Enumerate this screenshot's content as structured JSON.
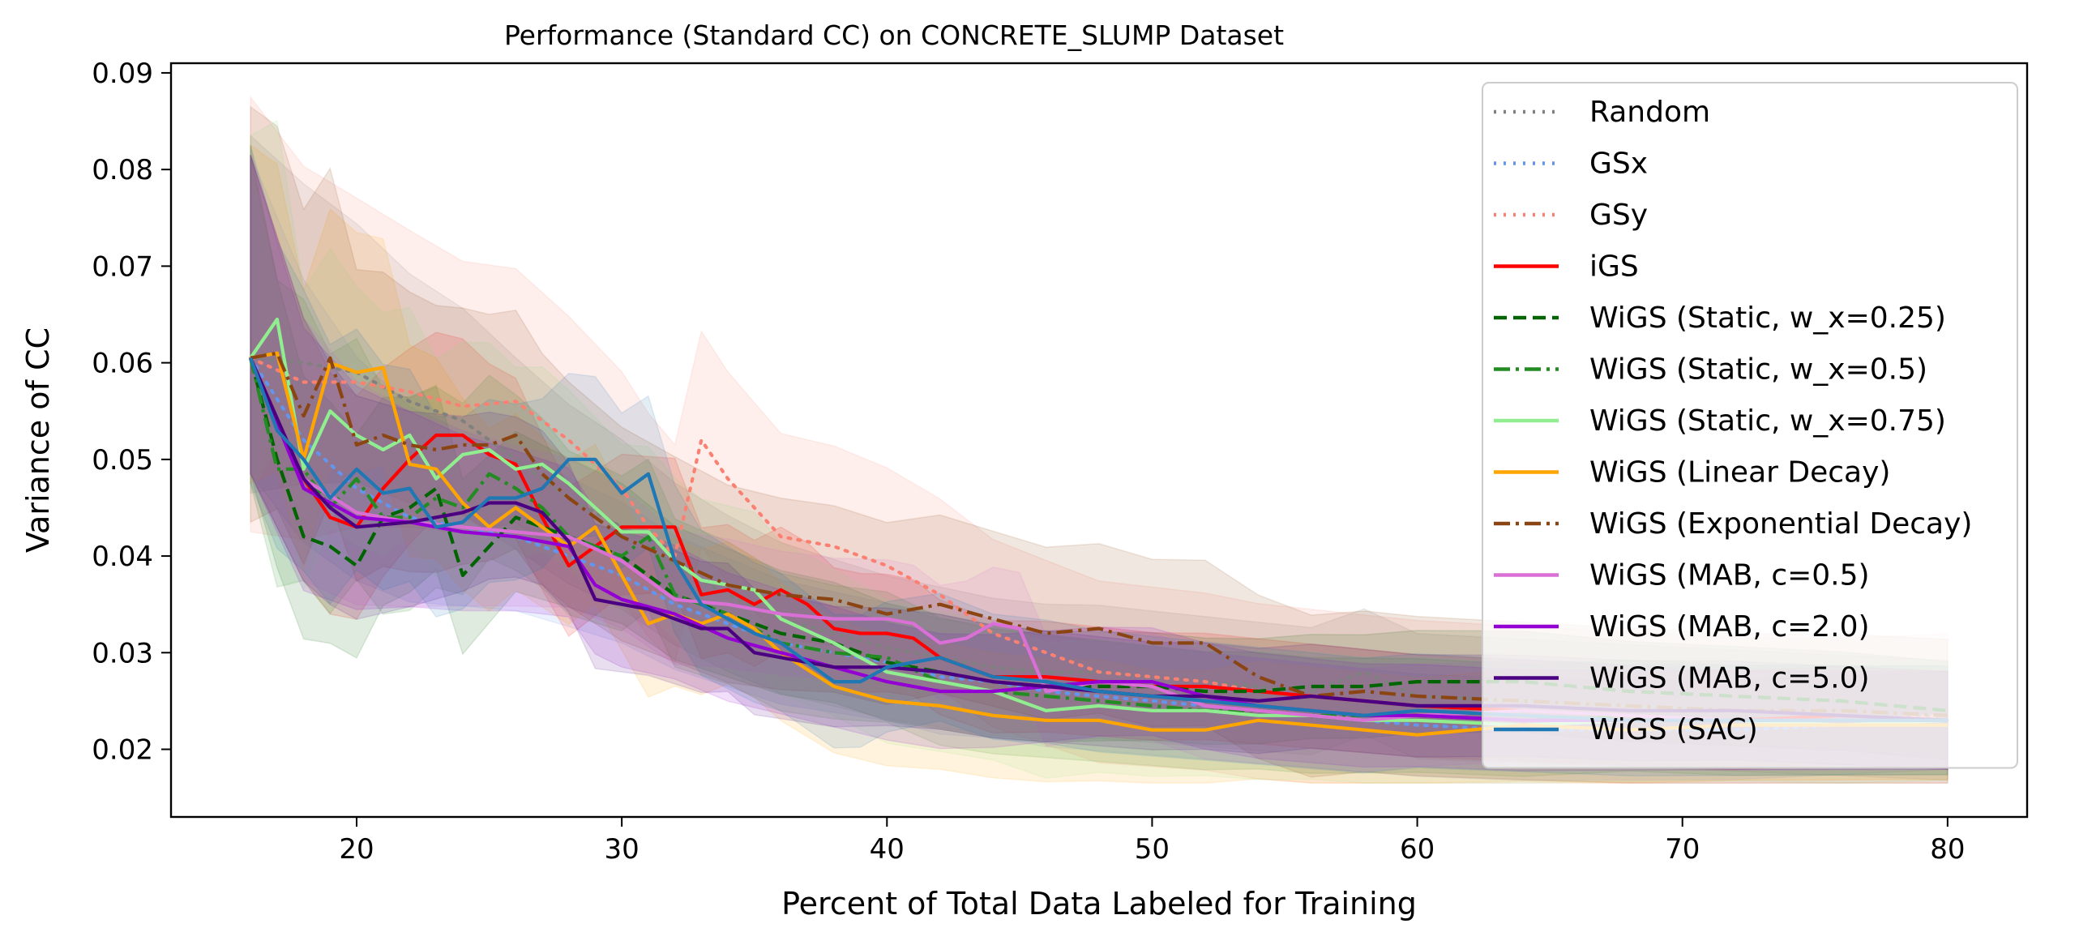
{
  "chart_data": {
    "type": "line",
    "title": "Performance (Standard CC) on CONCRETE_SLUMP Dataset",
    "xlabel": "Percent of Total Data Labeled for Training",
    "ylabel": "Variance of CC",
    "xlim": [
      13,
      83
    ],
    "ylim": [
      0.013,
      0.091
    ],
    "xticks": [
      20,
      30,
      40,
      50,
      60,
      70,
      80
    ],
    "xtick_labels": [
      "20",
      "30",
      "40",
      "50",
      "60",
      "70",
      "80"
    ],
    "yticks": [
      0.02,
      0.03,
      0.04,
      0.05,
      0.06,
      0.07,
      0.08,
      0.09
    ],
    "ytick_labels": [
      "0.02",
      "0.03",
      "0.04",
      "0.05",
      "0.06",
      "0.07",
      "0.08",
      "0.09"
    ],
    "grid": false,
    "legend_position": "upper right",
    "shaded_band": "mean ± std (translucent fill per series)",
    "series": [
      {
        "name": "Random",
        "color": "#808080",
        "dash": "dotted",
        "band_halfwidth": 0.011,
        "x": [
          16,
          18,
          20,
          22,
          24,
          26,
          28,
          30,
          32,
          34,
          36,
          38,
          40,
          42,
          44,
          46,
          48,
          50,
          52,
          54,
          56,
          58,
          60,
          64,
          68,
          72,
          76,
          80
        ],
        "y": [
          0.0605,
          0.06,
          0.059,
          0.056,
          0.054,
          0.05,
          0.046,
          0.043,
          0.039,
          0.036,
          0.0335,
          0.032,
          0.0305,
          0.0295,
          0.0285,
          0.028,
          0.028,
          0.0275,
          0.027,
          0.0265,
          0.026,
          0.028,
          0.0255,
          0.025,
          0.0245,
          0.024,
          0.0235,
          0.023
        ]
      },
      {
        "name": "GSx",
        "color": "#6495ED",
        "dash": "dotted",
        "band_halfwidth": 0.009,
        "x": [
          16,
          18,
          20,
          22,
          24,
          26,
          28,
          30,
          32,
          34,
          36,
          38,
          40,
          42,
          44,
          46,
          48,
          50,
          52,
          54,
          56,
          58,
          60,
          64,
          68,
          72,
          76,
          80
        ],
        "y": [
          0.0605,
          0.052,
          0.047,
          0.044,
          0.043,
          0.042,
          0.04,
          0.038,
          0.035,
          0.033,
          0.031,
          0.03,
          0.029,
          0.0275,
          0.027,
          0.026,
          0.0255,
          0.025,
          0.0245,
          0.024,
          0.0235,
          0.023,
          0.0225,
          0.022,
          0.022,
          0.022,
          0.0225,
          0.023
        ]
      },
      {
        "name": "GSy",
        "color": "#FA8072",
        "dash": "dotted",
        "band_halfwidth": 0.015,
        "x": [
          16,
          18,
          20,
          22,
          24,
          26,
          28,
          30,
          31,
          32,
          33,
          34,
          36,
          38,
          40,
          42,
          44,
          46,
          48,
          50,
          52,
          54,
          56,
          58,
          60,
          64,
          68,
          72,
          76,
          80
        ],
        "y": [
          0.0605,
          0.058,
          0.058,
          0.057,
          0.0555,
          0.056,
          0.052,
          0.047,
          0.043,
          0.04,
          0.052,
          0.048,
          0.042,
          0.041,
          0.039,
          0.036,
          0.032,
          0.03,
          0.028,
          0.0275,
          0.027,
          0.026,
          0.0255,
          0.025,
          0.0245,
          0.024,
          0.0235,
          0.023,
          0.023,
          0.0235
        ]
      },
      {
        "name": "iGS",
        "color": "#FF0000",
        "dash": "solid",
        "band_halfwidth": 0.009,
        "x": [
          16,
          18,
          19,
          20,
          21,
          22,
          23,
          24,
          25,
          26,
          27,
          28,
          29,
          30,
          31,
          32,
          33,
          34,
          35,
          36,
          37,
          38,
          39,
          40,
          41,
          42,
          44,
          46,
          48,
          50,
          52,
          54,
          56,
          58,
          60,
          64,
          68,
          72,
          76,
          80
        ],
        "y": [
          0.0605,
          0.048,
          0.044,
          0.043,
          0.047,
          0.05,
          0.0525,
          0.0525,
          0.0505,
          0.0495,
          0.044,
          0.039,
          0.041,
          0.043,
          0.043,
          0.043,
          0.036,
          0.0365,
          0.035,
          0.0365,
          0.035,
          0.0325,
          0.032,
          0.032,
          0.0315,
          0.0295,
          0.0275,
          0.0275,
          0.027,
          0.0265,
          0.0265,
          0.026,
          0.0255,
          0.025,
          0.0245,
          0.024,
          0.0235,
          0.023,
          0.0235,
          0.023
        ]
      },
      {
        "name": "WiGS (Static, w_x=0.25)",
        "color": "#006400",
        "dash": "dashed",
        "band_halfwidth": 0.009,
        "x": [
          16,
          17,
          18,
          19,
          20,
          21,
          22,
          23,
          24,
          25,
          26,
          28,
          30,
          32,
          34,
          36,
          38,
          40,
          42,
          44,
          46,
          48,
          50,
          52,
          54,
          56,
          58,
          60,
          62,
          64,
          68,
          72,
          76,
          80
        ],
        "y": [
          0.0605,
          0.05,
          0.042,
          0.041,
          0.039,
          0.044,
          0.045,
          0.047,
          0.038,
          0.041,
          0.044,
          0.042,
          0.04,
          0.036,
          0.034,
          0.032,
          0.031,
          0.029,
          0.028,
          0.027,
          0.0265,
          0.0265,
          0.0265,
          0.026,
          0.026,
          0.0265,
          0.0265,
          0.027,
          0.027,
          0.027,
          0.026,
          0.0255,
          0.025,
          0.024
        ]
      },
      {
        "name": "WiGS (Static, w_x=0.5)",
        "color": "#228B22",
        "dash": "dashdot",
        "band_halfwidth": 0.01,
        "x": [
          16,
          17,
          18,
          19,
          20,
          21,
          22,
          23,
          24,
          25,
          26,
          27,
          28,
          30,
          31,
          32,
          34,
          36,
          38,
          40,
          42,
          44,
          46,
          48,
          50,
          52,
          54,
          56,
          58,
          60,
          64,
          68,
          72,
          76,
          80
        ],
        "y": [
          0.0605,
          0.049,
          0.049,
          0.045,
          0.048,
          0.044,
          0.044,
          0.046,
          0.045,
          0.0485,
          0.047,
          0.045,
          0.042,
          0.04,
          0.042,
          0.036,
          0.034,
          0.031,
          0.03,
          0.0295,
          0.027,
          0.026,
          0.0255,
          0.025,
          0.0245,
          0.024,
          0.024,
          0.0235,
          0.0235,
          0.0235,
          0.023,
          0.0235,
          0.023,
          0.023,
          0.023
        ]
      },
      {
        "name": "WiGS (Static, w_x=0.75)",
        "color": "#90EE90",
        "dash": "solid",
        "band_halfwidth": 0.011,
        "x": [
          16,
          17,
          18,
          19,
          20,
          21,
          22,
          23,
          24,
          25,
          26,
          27,
          28,
          29,
          30,
          31,
          32,
          33,
          34,
          35,
          36,
          38,
          40,
          42,
          44,
          46,
          48,
          50,
          52,
          54,
          56,
          58,
          60,
          64,
          68,
          72,
          76,
          80
        ],
        "y": [
          0.0605,
          0.0645,
          0.049,
          0.055,
          0.0525,
          0.051,
          0.0525,
          0.048,
          0.0505,
          0.051,
          0.049,
          0.0495,
          0.0475,
          0.045,
          0.0425,
          0.0425,
          0.0395,
          0.0375,
          0.037,
          0.0365,
          0.0335,
          0.031,
          0.028,
          0.027,
          0.026,
          0.024,
          0.0245,
          0.024,
          0.024,
          0.0235,
          0.0235,
          0.023,
          0.023,
          0.0225,
          0.023,
          0.023,
          0.0225,
          0.023
        ]
      },
      {
        "name": "WiGS (Linear Decay)",
        "color": "#FFA500",
        "dash": "solid",
        "band_halfwidth": 0.01,
        "x": [
          16,
          17,
          18,
          19,
          20,
          21,
          22,
          23,
          24,
          25,
          26,
          27,
          28,
          29,
          30,
          31,
          32,
          33,
          34,
          35,
          36,
          38,
          40,
          42,
          44,
          46,
          48,
          50,
          52,
          54,
          56,
          58,
          60,
          64,
          68,
          72,
          76,
          80
        ],
        "y": [
          0.0605,
          0.061,
          0.05,
          0.06,
          0.059,
          0.0595,
          0.0495,
          0.049,
          0.0455,
          0.043,
          0.045,
          0.043,
          0.041,
          0.043,
          0.038,
          0.033,
          0.034,
          0.033,
          0.034,
          0.0325,
          0.03,
          0.0265,
          0.025,
          0.0245,
          0.0235,
          0.023,
          0.023,
          0.022,
          0.022,
          0.023,
          0.0225,
          0.022,
          0.0215,
          0.0225,
          0.022,
          0.0225,
          0.0225,
          0.0225
        ]
      },
      {
        "name": "WiGS (Exponential Decay)",
        "color": "#8B4513",
        "dash": "dashdot",
        "band_halfwidth": 0.014,
        "x": [
          16,
          17,
          18,
          19,
          20,
          21,
          22,
          23,
          24,
          25,
          26,
          27,
          28,
          30,
          32,
          34,
          36,
          38,
          40,
          42,
          44,
          46,
          48,
          50,
          52,
          54,
          56,
          58,
          60,
          64,
          68,
          72,
          76,
          80
        ],
        "y": [
          0.0605,
          0.061,
          0.0545,
          0.0605,
          0.0515,
          0.0525,
          0.0515,
          0.051,
          0.0515,
          0.0515,
          0.0525,
          0.0485,
          0.046,
          0.042,
          0.0395,
          0.037,
          0.036,
          0.0355,
          0.034,
          0.035,
          0.0335,
          0.032,
          0.0325,
          0.031,
          0.031,
          0.0275,
          0.0255,
          0.026,
          0.0255,
          0.025,
          0.0245,
          0.024,
          0.024,
          0.0235
        ]
      },
      {
        "name": "WiGS (MAB, c=0.5)",
        "color": "#DA70D6",
        "dash": "solid",
        "band_halfwidth": 0.009,
        "x": [
          16,
          18,
          20,
          22,
          24,
          26,
          28,
          30,
          32,
          34,
          36,
          38,
          40,
          41,
          42,
          43,
          44,
          45,
          46,
          48,
          50,
          52,
          54,
          56,
          58,
          60,
          64,
          68,
          72,
          76,
          80
        ],
        "y": [
          0.0605,
          0.048,
          0.0445,
          0.0435,
          0.043,
          0.0425,
          0.042,
          0.0395,
          0.0355,
          0.035,
          0.034,
          0.0335,
          0.0335,
          0.033,
          0.031,
          0.0315,
          0.033,
          0.0325,
          0.026,
          0.027,
          0.0265,
          0.0245,
          0.024,
          0.0235,
          0.023,
          0.0235,
          0.024,
          0.0235,
          0.023,
          0.023,
          0.023
        ]
      },
      {
        "name": "WiGS (MAB, c=2.0)",
        "color": "#9400D3",
        "dash": "solid",
        "band_halfwidth": 0.009,
        "x": [
          16,
          18,
          20,
          22,
          24,
          26,
          28,
          29,
          30,
          32,
          34,
          36,
          38,
          40,
          42,
          44,
          46,
          48,
          50,
          52,
          54,
          56,
          58,
          60,
          64,
          68,
          72,
          76,
          80
        ],
        "y": [
          0.0605,
          0.047,
          0.044,
          0.0435,
          0.0425,
          0.042,
          0.041,
          0.037,
          0.0355,
          0.034,
          0.0315,
          0.03,
          0.0285,
          0.027,
          0.026,
          0.026,
          0.0265,
          0.027,
          0.027,
          0.0255,
          0.0245,
          0.024,
          0.0235,
          0.0235,
          0.023,
          0.023,
          0.023,
          0.023,
          0.023
        ]
      },
      {
        "name": "WiGS (MAB, c=5.0)",
        "color": "#4B0082",
        "dash": "solid",
        "band_halfwidth": 0.009,
        "x": [
          16,
          18,
          19,
          20,
          22,
          24,
          25,
          26,
          27,
          28,
          29,
          30,
          31,
          32,
          33,
          34,
          35,
          36,
          38,
          40,
          42,
          44,
          46,
          48,
          50,
          52,
          54,
          56,
          58,
          60,
          64,
          68,
          72,
          76,
          80
        ],
        "y": [
          0.0605,
          0.048,
          0.045,
          0.043,
          0.0435,
          0.0445,
          0.0455,
          0.0455,
          0.0445,
          0.0415,
          0.0355,
          0.035,
          0.0345,
          0.0335,
          0.0325,
          0.0325,
          0.03,
          0.0295,
          0.0285,
          0.0285,
          0.028,
          0.027,
          0.0265,
          0.026,
          0.0255,
          0.0255,
          0.025,
          0.0255,
          0.025,
          0.0245,
          0.0245,
          0.024,
          0.024,
          0.0235,
          0.023
        ]
      },
      {
        "name": "WiGS (SAC)",
        "color": "#1F77B4",
        "dash": "solid",
        "band_halfwidth": 0.01,
        "x": [
          16,
          17,
          18,
          19,
          20,
          21,
          22,
          23,
          24,
          25,
          26,
          27,
          28,
          29,
          30,
          31,
          32,
          33,
          34,
          35,
          36,
          38,
          39,
          40,
          41,
          42,
          44,
          46,
          48,
          50,
          52,
          54,
          56,
          58,
          60,
          64,
          68,
          72,
          76,
          80
        ],
        "y": [
          0.0605,
          0.053,
          0.05,
          0.046,
          0.049,
          0.0465,
          0.047,
          0.043,
          0.0435,
          0.046,
          0.046,
          0.047,
          0.05,
          0.05,
          0.0465,
          0.0485,
          0.0395,
          0.035,
          0.0335,
          0.032,
          0.031,
          0.027,
          0.027,
          0.0285,
          0.029,
          0.0295,
          0.0275,
          0.027,
          0.026,
          0.0255,
          0.025,
          0.0245,
          0.024,
          0.0235,
          0.024,
          0.0235,
          0.023,
          0.023,
          0.023,
          0.023
        ]
      }
    ]
  }
}
